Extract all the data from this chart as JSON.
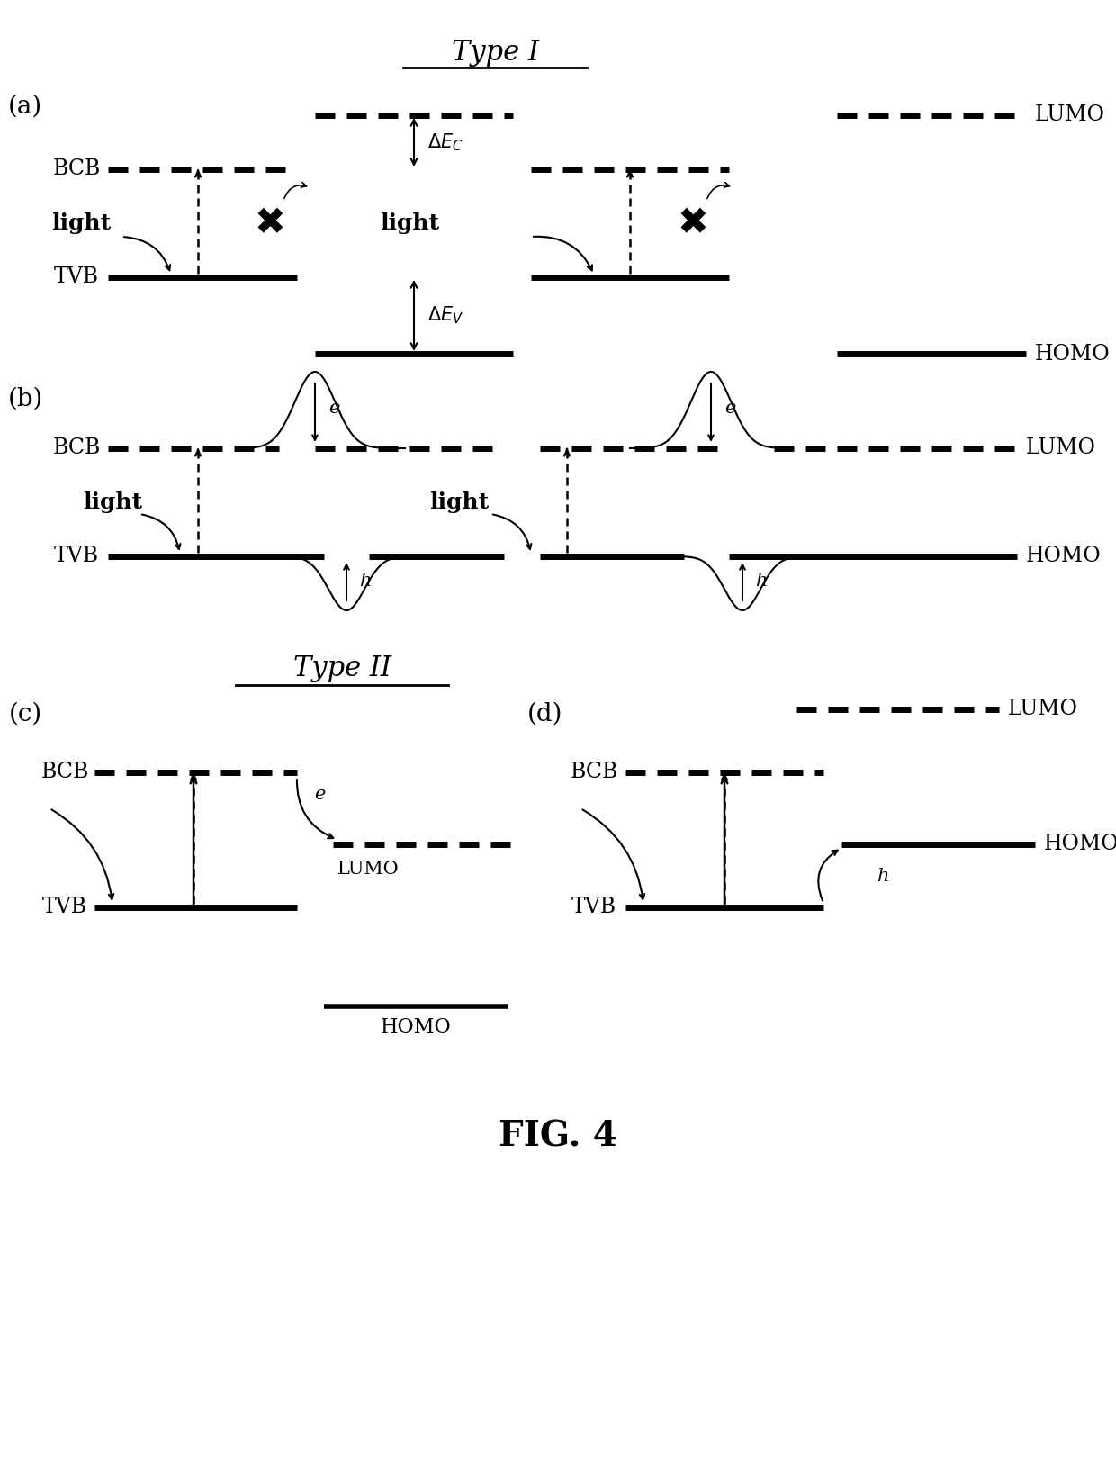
{
  "fig_width": 12.4,
  "fig_height": 16.43,
  "bg_color": "#ffffff",
  "line_color": "#000000",
  "title_type1": "Type I",
  "title_type2": "Type II",
  "fig_label": "FIG. 4"
}
